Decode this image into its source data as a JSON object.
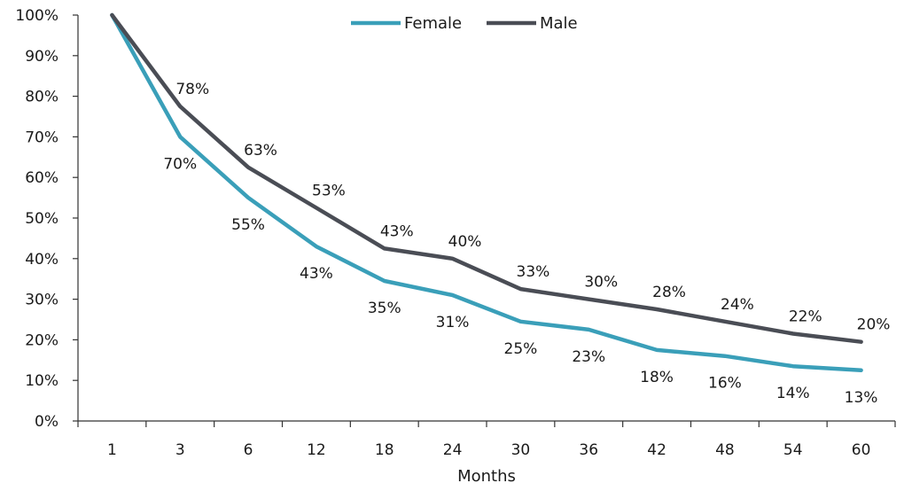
{
  "chart_data": {
    "type": "line",
    "title": "",
    "xlabel": "Months",
    "ylabel": "",
    "ylim": [
      0,
      100
    ],
    "yticks": [
      "0%",
      "10%",
      "20%",
      "30%",
      "40%",
      "50%",
      "60%",
      "70%",
      "80%",
      "90%",
      "100%"
    ],
    "categories": [
      "1",
      "3",
      "6",
      "12",
      "18",
      "24",
      "30",
      "36",
      "42",
      "48",
      "54",
      "60"
    ],
    "grid": false,
    "legend": "top-center",
    "series": [
      {
        "name": "Female",
        "color": "#3a9fb9",
        "values": [
          100,
          70,
          55,
          43,
          34.5,
          31,
          24.5,
          22.5,
          17.5,
          16,
          13.5,
          12.5
        ],
        "labels": [
          "",
          "70%",
          "55%",
          "43%",
          "35%",
          "31%",
          "25%",
          "23%",
          "18%",
          "16%",
          "14%",
          "13%"
        ]
      },
      {
        "name": "Male",
        "color": "#4a4d55",
        "values": [
          100,
          77.5,
          62.5,
          52.5,
          42.5,
          40,
          32.5,
          30,
          27.5,
          24.5,
          21.5,
          19.5
        ],
        "labels": [
          "",
          "78%",
          "63%",
          "53%",
          "43%",
          "40%",
          "33%",
          "30%",
          "28%",
          "24%",
          "22%",
          "20%"
        ]
      }
    ]
  }
}
